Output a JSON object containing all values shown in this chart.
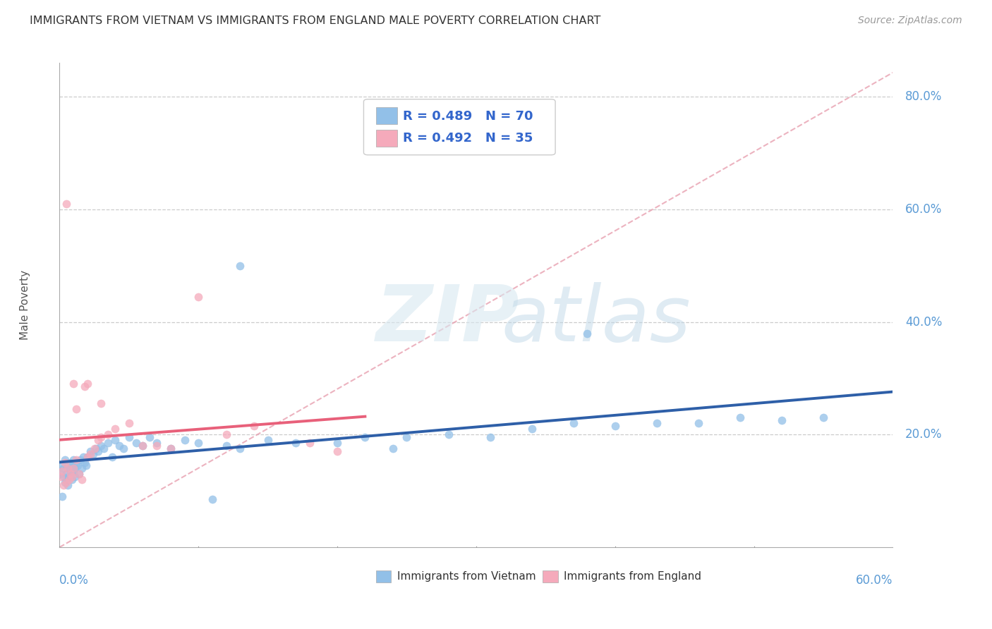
{
  "title": "IMMIGRANTS FROM VIETNAM VS IMMIGRANTS FROM ENGLAND MALE POVERTY CORRELATION CHART",
  "source": "Source: ZipAtlas.com",
  "ylabel": "Male Poverty",
  "color_vietnam": "#92C0E8",
  "color_england": "#F5AABB",
  "color_trendline_vietnam": "#2E5FA8",
  "color_trendline_england": "#E8607A",
  "color_diagonal": "#E8A0B0",
  "xlim_max": 0.6,
  "ylim_max": 0.86,
  "y_ticks": [
    0.2,
    0.4,
    0.6,
    0.8
  ],
  "y_tick_labels": [
    "20.0%",
    "40.0%",
    "60.0%",
    "80.0%"
  ],
  "x_tick_labels": [
    "0.0%",
    "60.0%"
  ],
  "legend_entry1": "R = 0.489   N = 70",
  "legend_entry2": "R = 0.492   N = 35",
  "bottom_legend1": "Immigrants from Vietnam",
  "bottom_legend2": "Immigrants from England",
  "vietnam_x": [
    0.001,
    0.002,
    0.002,
    0.003,
    0.003,
    0.004,
    0.004,
    0.005,
    0.005,
    0.006,
    0.006,
    0.007,
    0.007,
    0.008,
    0.008,
    0.009,
    0.009,
    0.01,
    0.01,
    0.011,
    0.011,
    0.012,
    0.013,
    0.014,
    0.015,
    0.016,
    0.017,
    0.018,
    0.019,
    0.02,
    0.022,
    0.024,
    0.026,
    0.028,
    0.03,
    0.032,
    0.035,
    0.038,
    0.04,
    0.043,
    0.046,
    0.05,
    0.055,
    0.06,
    0.065,
    0.07,
    0.08,
    0.09,
    0.1,
    0.11,
    0.12,
    0.13,
    0.15,
    0.17,
    0.2,
    0.22,
    0.25,
    0.28,
    0.31,
    0.34,
    0.37,
    0.4,
    0.43,
    0.46,
    0.49,
    0.52,
    0.55,
    0.13,
    0.24,
    0.38
  ],
  "vietnam_y": [
    0.13,
    0.145,
    0.09,
    0.125,
    0.14,
    0.115,
    0.155,
    0.13,
    0.12,
    0.14,
    0.11,
    0.145,
    0.125,
    0.13,
    0.15,
    0.12,
    0.14,
    0.135,
    0.155,
    0.14,
    0.125,
    0.15,
    0.145,
    0.13,
    0.155,
    0.14,
    0.16,
    0.15,
    0.145,
    0.16,
    0.17,
    0.165,
    0.175,
    0.17,
    0.18,
    0.175,
    0.185,
    0.16,
    0.19,
    0.18,
    0.175,
    0.195,
    0.185,
    0.18,
    0.195,
    0.185,
    0.175,
    0.19,
    0.185,
    0.085,
    0.18,
    0.175,
    0.19,
    0.185,
    0.185,
    0.195,
    0.195,
    0.2,
    0.195,
    0.21,
    0.22,
    0.215,
    0.22,
    0.22,
    0.23,
    0.225,
    0.23,
    0.5,
    0.175,
    0.38
  ],
  "england_x": [
    0.001,
    0.002,
    0.003,
    0.004,
    0.005,
    0.006,
    0.007,
    0.008,
    0.009,
    0.01,
    0.012,
    0.014,
    0.016,
    0.018,
    0.02,
    0.022,
    0.025,
    0.028,
    0.03,
    0.035,
    0.04,
    0.05,
    0.06,
    0.07,
    0.08,
    0.1,
    0.12,
    0.14,
    0.18,
    0.02,
    0.03,
    0.012,
    0.01,
    0.2,
    0.005
  ],
  "england_y": [
    0.125,
    0.135,
    0.11,
    0.15,
    0.115,
    0.14,
    0.12,
    0.13,
    0.125,
    0.14,
    0.155,
    0.13,
    0.12,
    0.285,
    0.16,
    0.165,
    0.175,
    0.19,
    0.195,
    0.2,
    0.21,
    0.22,
    0.18,
    0.18,
    0.175,
    0.445,
    0.2,
    0.215,
    0.185,
    0.29,
    0.255,
    0.245,
    0.29,
    0.17,
    0.61
  ]
}
